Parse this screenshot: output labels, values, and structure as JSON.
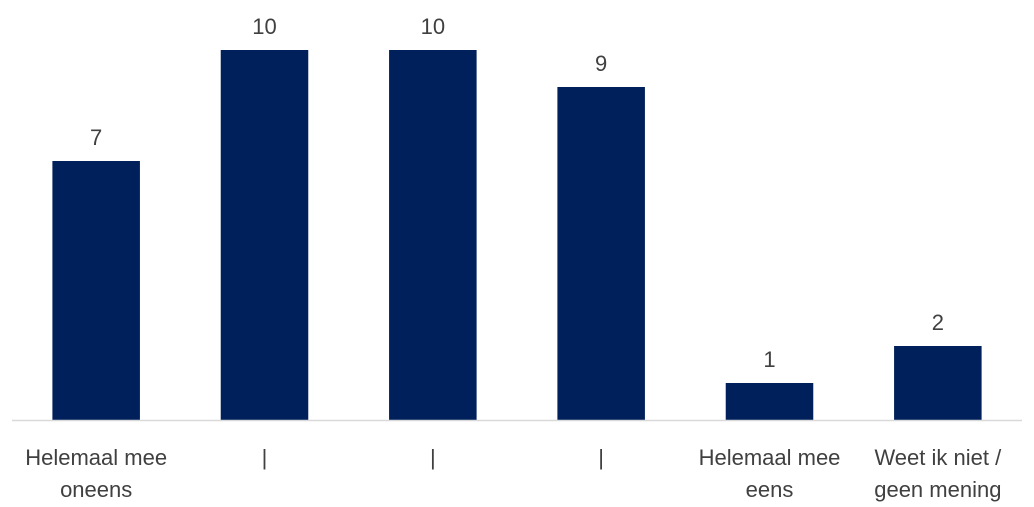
{
  "chart_data": {
    "type": "bar",
    "title": "",
    "xlabel": "",
    "ylabel": "",
    "categories": [
      [
        "Helemaal mee",
        "oneens"
      ],
      [
        "|"
      ],
      [
        "|"
      ],
      [
        "|"
      ],
      [
        "Helemaal mee",
        "eens"
      ],
      [
        "Weet ik niet /",
        "geen mening"
      ]
    ],
    "values": [
      7,
      10,
      10,
      9,
      1,
      2
    ],
    "ylim": [
      0,
      10
    ],
    "grid": false,
    "legend": "none",
    "data_labels": true,
    "colors": {
      "bar": "#00205b",
      "axis": "#d9d9d9",
      "text": "#404040"
    }
  }
}
